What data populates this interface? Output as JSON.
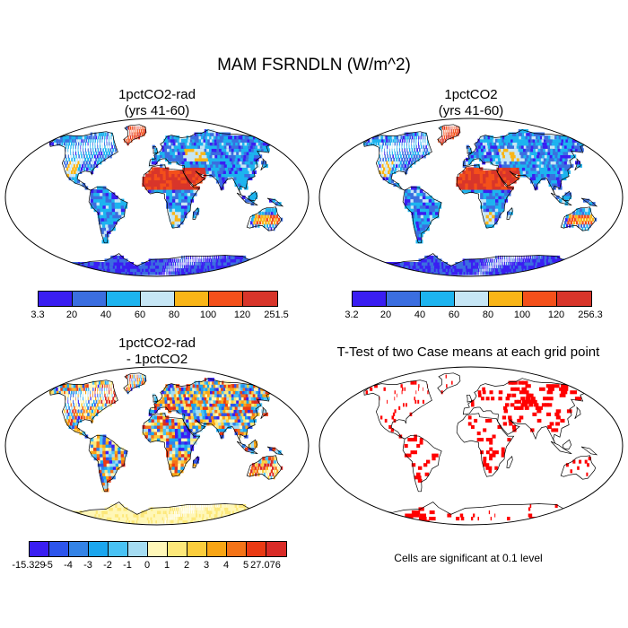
{
  "figure": {
    "title": "MAM FSRNDLN (W/m^2)",
    "panels": [
      {
        "id": "tl",
        "title_line1": "1pctCO2-rad",
        "title_line2": "(yrs 41-60)"
      },
      {
        "id": "tr",
        "title_line1": "1pctCO2",
        "title_line2": "(yrs 41-60)"
      },
      {
        "id": "bl",
        "title_line1": "1pctCO2-rad",
        "title_line2": "- 1pctCO2"
      },
      {
        "id": "br",
        "title_line1": "T-Test of two Case means at each grid point",
        "title_line2": ""
      }
    ],
    "colorbars": {
      "tl": {
        "labels": [
          "3.3",
          "20",
          "40",
          "60",
          "80",
          "100",
          "120",
          "251.5"
        ],
        "colors": [
          "#3a1ef2",
          "#3b6ee0",
          "#1db4ef",
          "#c6e6f5",
          "#f9b517",
          "#f4501a",
          "#d8352a"
        ]
      },
      "tr": {
        "labels": [
          "3.2",
          "20",
          "40",
          "60",
          "80",
          "100",
          "120",
          "256.3"
        ],
        "colors": [
          "#3a1ef2",
          "#3b6ee0",
          "#1db4ef",
          "#c6e6f5",
          "#f9b517",
          "#f4501a",
          "#d8352a"
        ]
      },
      "bl": {
        "labels": [
          "-15.329",
          "-5",
          "-4",
          "-3",
          "-2",
          "-1",
          "0",
          "1",
          "2",
          "3",
          "4",
          "5",
          "27.076"
        ],
        "colors": [
          "#3a1ef2",
          "#2d55ec",
          "#3483e6",
          "#1ba6ee",
          "#49c2f4",
          "#a5dcf2",
          "#fff7b8",
          "#fde87a",
          "#fbcd3c",
          "#f9a515",
          "#f47318",
          "#ea3a14",
          "#d92b27"
        ]
      }
    },
    "note": "Cells are significant at 0.1 level"
  }
}
